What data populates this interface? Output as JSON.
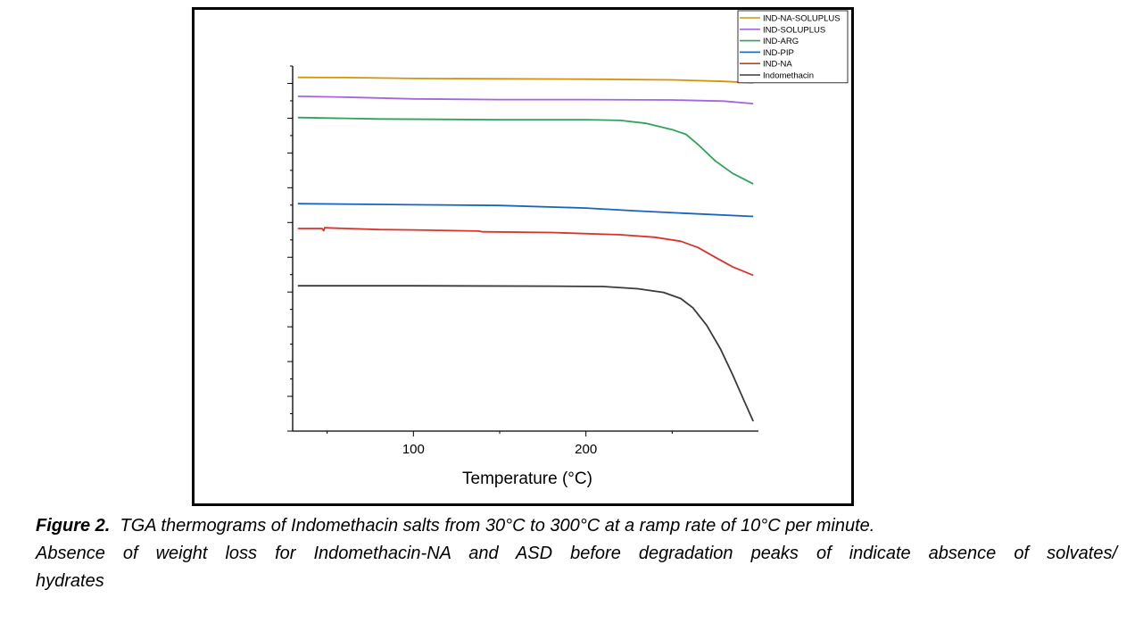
{
  "figure": {
    "caption_label": "Figure 2.",
    "caption_line1": "TGA thermograms of Indomethacin salts from 30°C to 300°C at a ramp rate of 10°C per minute.",
    "caption_line2": "Absence of weight loss  for Indomethacin-NA and ASD before  degradation peaks of indicate absence of solvates/",
    "caption_line3": "hydrates"
  },
  "chart_data": {
    "type": "line",
    "title": "",
    "xlabel": "Temperature (°C)",
    "ylabel": "",
    "xlim": [
      30,
      300
    ],
    "x_ticks": [
      100,
      200
    ],
    "y_tick_labels_visible": false,
    "legend_position": "top-right",
    "series": [
      {
        "name": "IND-NA-SOLUPLUS",
        "color": "#D4940A",
        "points": [
          [
            33,
            96.9
          ],
          [
            60,
            96.85
          ],
          [
            100,
            96.6
          ],
          [
            150,
            96.5
          ],
          [
            200,
            96.4
          ],
          [
            250,
            96.2
          ],
          [
            280,
            95.8
          ],
          [
            297,
            95.4
          ]
        ]
      },
      {
        "name": "IND-SOLUPLUS",
        "color": "#A465E0",
        "points": [
          [
            33,
            91.7
          ],
          [
            60,
            91.5
          ],
          [
            100,
            91.0
          ],
          [
            150,
            90.8
          ],
          [
            200,
            90.8
          ],
          [
            250,
            90.7
          ],
          [
            280,
            90.4
          ],
          [
            297,
            89.7
          ]
        ]
      },
      {
        "name": "IND-ARG",
        "color": "#2FA35A",
        "points": [
          [
            33,
            85.9
          ],
          [
            80,
            85.5
          ],
          [
            150,
            85.3
          ],
          [
            200,
            85.3
          ],
          [
            220,
            85.1
          ],
          [
            235,
            84.3
          ],
          [
            250,
            82.6
          ],
          [
            258,
            81.3
          ],
          [
            265,
            78.5
          ],
          [
            275,
            74.0
          ],
          [
            285,
            70.6
          ],
          [
            297,
            67.7
          ]
        ]
      },
      {
        "name": "IND-PIP",
        "color": "#1565C0",
        "points": [
          [
            33,
            62.3
          ],
          [
            100,
            62.0
          ],
          [
            150,
            61.8
          ],
          [
            200,
            61.1
          ],
          [
            230,
            60.3
          ],
          [
            260,
            59.6
          ],
          [
            297,
            58.8
          ]
        ]
      },
      {
        "name": "IND-NA",
        "color": "#D9342B",
        "points": [
          [
            33,
            55.5
          ],
          [
            47,
            55.5
          ],
          [
            48,
            54.9
          ],
          [
            48.5,
            55.7
          ],
          [
            80,
            55.2
          ],
          [
            100,
            55.1
          ],
          [
            138,
            54.8
          ],
          [
            140,
            54.6
          ],
          [
            180,
            54.4
          ],
          [
            220,
            53.8
          ],
          [
            240,
            53.1
          ],
          [
            255,
            52.0
          ],
          [
            265,
            50.3
          ],
          [
            275,
            47.6
          ],
          [
            285,
            45.0
          ],
          [
            297,
            42.7
          ]
        ]
      },
      {
        "name": "Indomethacin",
        "color": "#3A3A3A",
        "points": [
          [
            33,
            39.8
          ],
          [
            100,
            39.8
          ],
          [
            180,
            39.7
          ],
          [
            210,
            39.6
          ],
          [
            230,
            39.0
          ],
          [
            245,
            38.0
          ],
          [
            255,
            36.3
          ],
          [
            262,
            33.8
          ],
          [
            270,
            29.0
          ],
          [
            278,
            22.5
          ],
          [
            285,
            15.5
          ],
          [
            292,
            8.0
          ],
          [
            297,
            2.7
          ]
        ]
      }
    ],
    "ylim": [
      0,
      100
    ]
  }
}
